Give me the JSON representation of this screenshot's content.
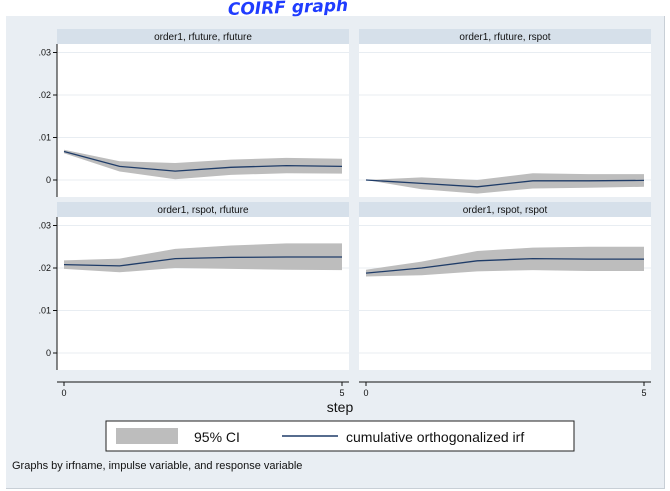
{
  "annotation": {
    "top_handwriting": "COIRF graph"
  },
  "chart_data": {
    "type": "line",
    "panel_layout": "2x2",
    "xlabel": "step",
    "xlim": [
      0,
      5
    ],
    "x_ticks": [
      0,
      5
    ],
    "ylim": [
      -0.004,
      0.032
    ],
    "y_ticks": [
      0,
      0.01,
      0.02,
      0.03
    ],
    "y_tick_labels": [
      "0",
      ".01",
      ".02",
      ".03"
    ],
    "grid": true,
    "legend_placement": "bottom",
    "legend": [
      {
        "label": "95% CI",
        "kind": "band"
      },
      {
        "label": "cumulative orthogonalized irf",
        "kind": "line"
      }
    ],
    "band_color": "#bdbdbd",
    "line_color": "#1f3c68",
    "note": "Graphs by irfname, impulse variable, and response variable",
    "panels": [
      {
        "title": "order1, rfuture, rfuture",
        "x": [
          0,
          1,
          2,
          3,
          4,
          5
        ],
        "irf": [
          0.0067,
          0.0032,
          0.0021,
          0.003,
          0.0034,
          0.0032
        ],
        "lower": [
          0.0063,
          0.002,
          0.0002,
          0.0012,
          0.0016,
          0.0015
        ],
        "upper": [
          0.0071,
          0.0044,
          0.004,
          0.0048,
          0.0052,
          0.005
        ]
      },
      {
        "title": "order1, rfuture, rspot",
        "x": [
          0,
          1,
          2,
          3,
          4,
          5
        ],
        "irf": [
          0.0,
          -0.0008,
          -0.0016,
          -0.0002,
          -0.0002,
          -0.0001
        ],
        "lower": [
          0.0,
          -0.0022,
          -0.0032,
          -0.002,
          -0.0018,
          -0.0016
        ],
        "upper": [
          0.0,
          0.0006,
          0.0,
          0.0016,
          0.0014,
          0.0014
        ]
      },
      {
        "title": "order1, rspot, rfuture",
        "x": [
          0,
          1,
          2,
          3,
          4,
          5
        ],
        "irf": [
          0.0208,
          0.0205,
          0.0222,
          0.0225,
          0.0226,
          0.0226
        ],
        "lower": [
          0.0198,
          0.019,
          0.02,
          0.0198,
          0.0196,
          0.0195
        ],
        "upper": [
          0.0218,
          0.0222,
          0.0245,
          0.0253,
          0.0258,
          0.0258
        ]
      },
      {
        "title": "order1, rspot, rspot",
        "x": [
          0,
          1,
          2,
          3,
          4,
          5
        ],
        "irf": [
          0.0188,
          0.02,
          0.0217,
          0.0222,
          0.0221,
          0.0221
        ],
        "lower": [
          0.018,
          0.0183,
          0.0192,
          0.0195,
          0.0193,
          0.0193
        ],
        "upper": [
          0.0196,
          0.0215,
          0.024,
          0.0248,
          0.025,
          0.025
        ]
      }
    ]
  }
}
